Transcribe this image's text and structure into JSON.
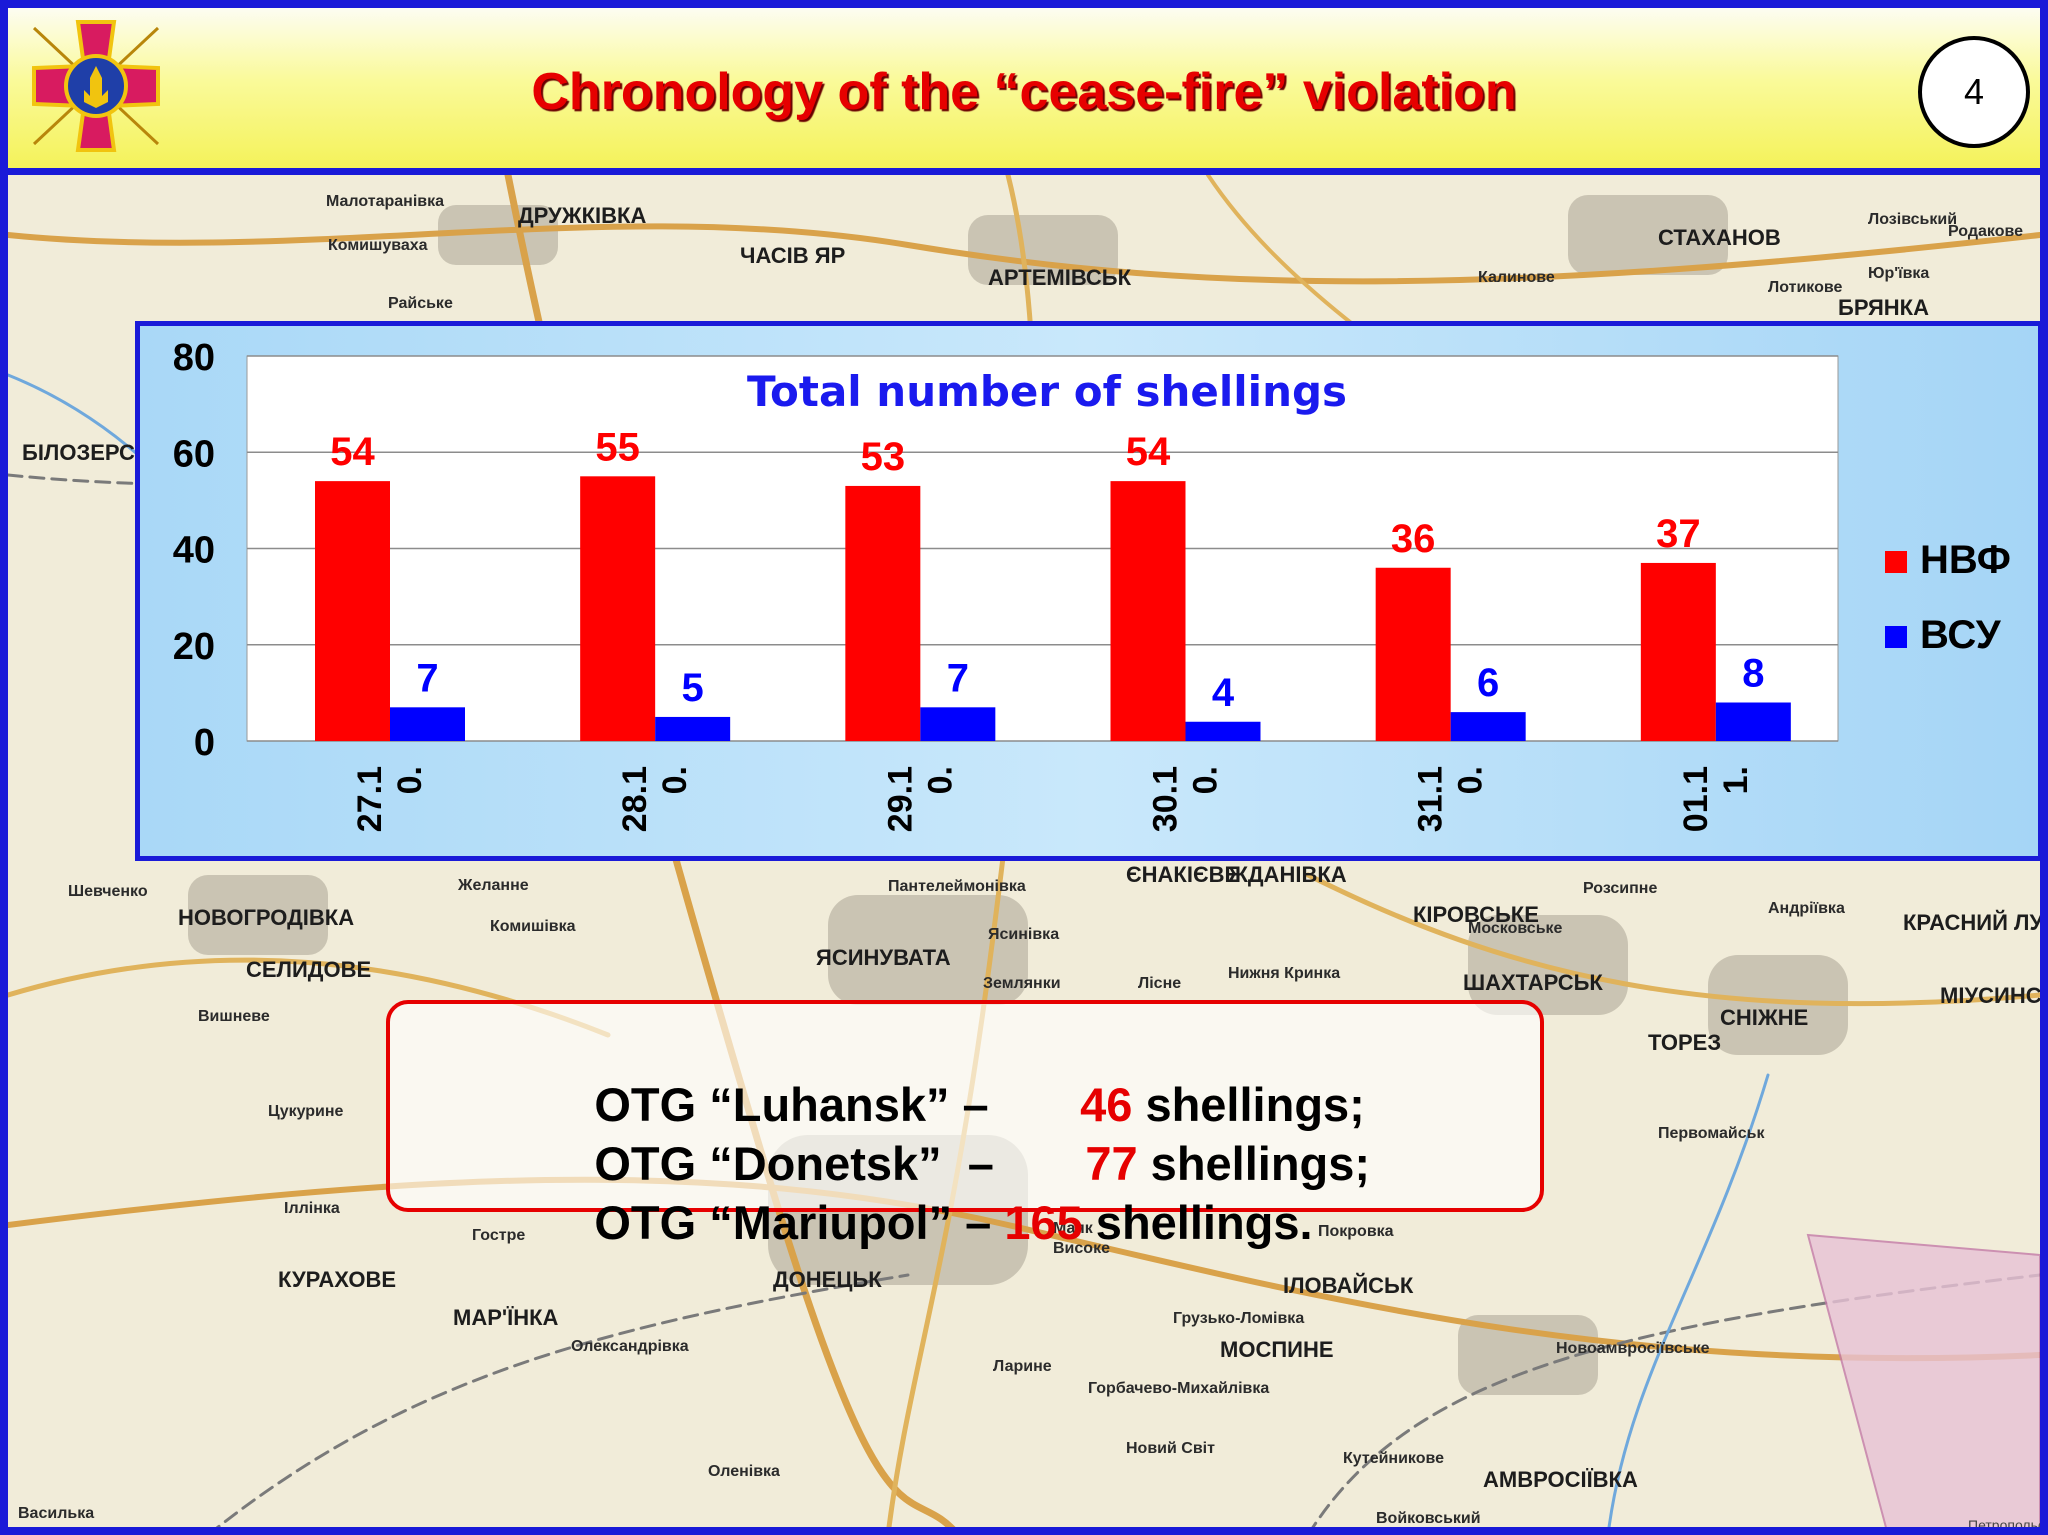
{
  "header": {
    "title": "Chronology of the “cease-fire” violation",
    "page_number": "4"
  },
  "colors": {
    "series_1": "#ff0000",
    "series_2": "#0000ff",
    "title_blue": "#1a1aee",
    "frame_blue": "#1a1ad8"
  },
  "map": {
    "towns": [
      "ДРУЖКІВКА",
      "ЧАСІВ ЯР",
      "АРТЕМІВСЬК",
      "СТАХАНОВ",
      "БРЯНКА",
      "Малотаранівка",
      "Комишуваха",
      "Райське",
      "Калинове",
      "Лозівський",
      "Родакове",
      "Лотикове",
      "Юр'ївка",
      "БІЛОЗЕРСЬ",
      "НОВОГРОДІВКА",
      "СЕЛИДОВЕ",
      "ЯСИНУВАТА",
      "ЄНАКІЄВЕ",
      "ЖДАНІВКА",
      "КІРОВСЬКЕ",
      "ШАХТАРСЬК",
      "ТОРЕЗ",
      "СНІЖНЕ",
      "КРАСНИЙ ЛУЧ",
      "МІУСИНСЬК",
      "ДОНЕЦЬК",
      "КУРАХОВЕ",
      "МАР'ЇНКА",
      "ІЛОВАЙСЬК",
      "МОСПИНЕ",
      "АМВРОСІЇВКА",
      "Новоамвросіївське",
      "Первомайськ",
      "Шевченко",
      "Вишневе",
      "Цукурине",
      "Іллінка",
      "Гостре",
      "Олександрівка",
      "Горбачево-Михайлівка",
      "Новий Світ",
      "Кутейникове",
      "Войковський",
      "Оленівка",
      "Желанне",
      "Комишівка",
      "Пантелеймонівка",
      "Ясинівка",
      "Землянки",
      "Лісне",
      "Нижня Кринка",
      "Московське",
      "Розсипне",
      "Андріївка",
      "Покровка",
      "Маяк",
      "Високе",
      "Грузько-Ломівка",
      "Ларине",
      "Петропольє",
      "Василька"
    ]
  },
  "chart_data": {
    "type": "bar",
    "title": "Total number of shellings",
    "categories": [
      "27.10.",
      "28.10.",
      "29.10.",
      "30.10.",
      "31.10.",
      "01.11."
    ],
    "category_lines": [
      [
        "27.1",
        "0."
      ],
      [
        "28.1",
        "0."
      ],
      [
        "29.1",
        "0."
      ],
      [
        "30.1",
        "0."
      ],
      [
        "31.1",
        "0."
      ],
      [
        "01.1",
        "1."
      ]
    ],
    "series": [
      {
        "name": "НВФ",
        "values": [
          54,
          55,
          53,
          54,
          36,
          37
        ],
        "color": "#ff0000"
      },
      {
        "name": "ВСУ",
        "values": [
          7,
          5,
          7,
          4,
          6,
          8
        ],
        "color": "#0000ff"
      }
    ],
    "ylim": [
      0,
      80
    ],
    "yticks": [
      "0",
      "20",
      "40",
      "60",
      "80"
    ],
    "grid": true,
    "legend": "right",
    "data_labels": true
  },
  "summary": {
    "lines": [
      {
        "prefix": "OTG “Luhansk” –       ",
        "number": "46",
        "suffix": " shellings;"
      },
      {
        "prefix": "OTG “Donetsk”  –       ",
        "number": "77",
        "suffix": " shellings;"
      },
      {
        "prefix": "OTG “Mariupol” – ",
        "number": "165",
        "suffix": " shellings."
      }
    ]
  }
}
